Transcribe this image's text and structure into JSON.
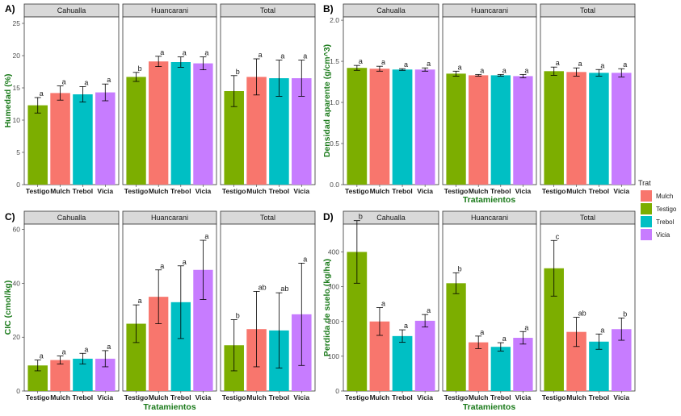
{
  "legend": {
    "title": "Trat",
    "items": [
      {
        "label": "Mulch",
        "color": "#F8766D"
      },
      {
        "label": "Testigo",
        "color": "#7CAE00"
      },
      {
        "label": "Trebol",
        "color": "#00BFC4"
      },
      {
        "label": "Vicia",
        "color": "#C77CFF"
      }
    ]
  },
  "colors": {
    "Testigo": "#7CAE00",
    "Mulch": "#F8766D",
    "Trebol": "#00BFC4",
    "Vicia": "#C77CFF"
  },
  "chart_data": [
    {
      "tag": "A)",
      "type": "bar",
      "ylabel": "Humedad (%)",
      "xlabel": "",
      "ylim": [
        0,
        26
      ],
      "yticks": [
        0,
        5,
        10,
        15,
        20,
        25
      ],
      "ytick_labels": [
        "0",
        "5",
        "10",
        "15",
        "20",
        "25"
      ],
      "categories": [
        "Testigo",
        "Mulch",
        "Trebol",
        "Vicia"
      ],
      "facets": [
        {
          "name": "Cahualla",
          "values": [
            12.3,
            14.2,
            14.0,
            14.3
          ],
          "errors": [
            1.2,
            1.1,
            1.2,
            1.3
          ],
          "labels": [
            "a",
            "a",
            "a",
            "a"
          ]
        },
        {
          "name": "Huancarani",
          "values": [
            16.7,
            19.1,
            19.0,
            18.8
          ],
          "errors": [
            0.7,
            0.8,
            0.8,
            1.0
          ],
          "labels": [
            "b",
            "a",
            "a",
            "a"
          ]
        },
        {
          "name": "Total",
          "values": [
            14.5,
            16.7,
            16.5,
            16.5
          ],
          "errors": [
            2.4,
            2.8,
            2.8,
            2.8
          ],
          "labels": [
            "b",
            "a",
            "a",
            "a"
          ]
        }
      ]
    },
    {
      "tag": "B)",
      "type": "bar",
      "ylabel": "Densidad aparente (g/cm^3)",
      "xlabel": "Tratamientos",
      "ylim": [
        0,
        2.04
      ],
      "yticks": [
        0,
        0.5,
        1.0,
        1.5,
        2.0
      ],
      "ytick_labels": [
        "0.0",
        "0.5",
        "1.0",
        "1.5",
        "2.0"
      ],
      "categories": [
        "Testigo",
        "Mulch",
        "Trebol",
        "Vicia"
      ],
      "facets": [
        {
          "name": "Cahualla",
          "values": [
            1.42,
            1.41,
            1.4,
            1.4
          ],
          "errors": [
            0.03,
            0.03,
            0.01,
            0.02
          ],
          "labels": [
            "a",
            "a",
            "a",
            "a"
          ]
        },
        {
          "name": "Huancarani",
          "values": [
            1.35,
            1.33,
            1.33,
            1.32
          ],
          "errors": [
            0.03,
            0.01,
            0.01,
            0.02
          ],
          "labels": [
            "a",
            "a",
            "a",
            "a"
          ]
        },
        {
          "name": "Total",
          "values": [
            1.38,
            1.37,
            1.36,
            1.36
          ],
          "errors": [
            0.05,
            0.05,
            0.04,
            0.05
          ],
          "labels": [
            "a",
            "a",
            "a",
            "a"
          ]
        }
      ]
    },
    {
      "tag": "C)",
      "type": "bar",
      "ylabel": "CIC (cmol/kg)",
      "xlabel": "Tratamientos",
      "ylim": [
        0,
        62
      ],
      "yticks": [
        0,
        20,
        40,
        60
      ],
      "ytick_labels": [
        "0",
        "20",
        "40",
        "60"
      ],
      "categories": [
        "Testigo",
        "Mulch",
        "Trebol",
        "Vicia"
      ],
      "facets": [
        {
          "name": "Cahualla",
          "values": [
            9.5,
            11.5,
            12.0,
            12.0
          ],
          "errors": [
            2.0,
            1.5,
            2.0,
            3.0
          ],
          "labels": [
            "a",
            "a",
            "a",
            "a"
          ]
        },
        {
          "name": "Huancarani",
          "values": [
            25.0,
            35.0,
            33.0,
            45.0
          ],
          "errors": [
            7.0,
            10.0,
            13.5,
            11.0
          ],
          "labels": [
            "a",
            "a",
            "a",
            "a"
          ]
        },
        {
          "name": "Total",
          "values": [
            17.0,
            23.0,
            22.5,
            28.5
          ],
          "errors": [
            9.5,
            14.0,
            14.0,
            19.0
          ],
          "labels": [
            "b",
            "ab",
            "ab",
            "a"
          ]
        }
      ]
    },
    {
      "tag": "D)",
      "type": "bar",
      "ylabel": "Perdida de suelo (kg/ha)",
      "xlabel": "Tratamientos",
      "ylim": [
        0,
        480
      ],
      "yticks": [
        0,
        100,
        200,
        300,
        400
      ],
      "ytick_labels": [
        "0",
        "100",
        "200",
        "300",
        "400"
      ],
      "categories": [
        "Testigo",
        "Mulch",
        "Trebol",
        "Vicia"
      ],
      "facets": [
        {
          "name": "Cahualla",
          "values": [
            400,
            200,
            158,
            202
          ],
          "errors": [
            90,
            40,
            18,
            18
          ],
          "labels": [
            "b",
            "a",
            "a",
            "a"
          ]
        },
        {
          "name": "Huancarani",
          "values": [
            310,
            140,
            127,
            153
          ],
          "errors": [
            30,
            18,
            12,
            18
          ],
          "labels": [
            "b",
            "a",
            "a",
            "a"
          ]
        },
        {
          "name": "Total",
          "values": [
            353,
            170,
            142,
            178
          ],
          "errors": [
            80,
            42,
            22,
            32
          ],
          "labels": [
            "c",
            "ab",
            "a",
            "b"
          ]
        }
      ]
    }
  ]
}
